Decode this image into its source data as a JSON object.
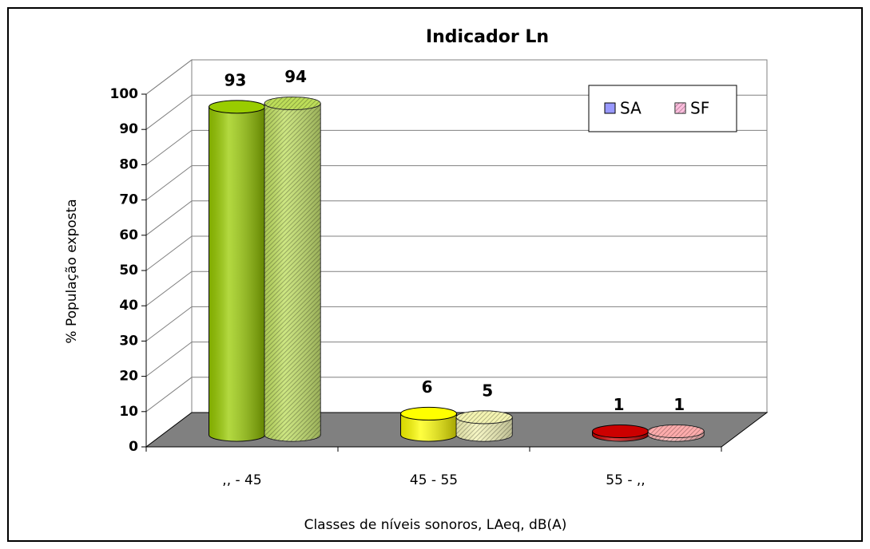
{
  "chart_data": {
    "type": "bar3d",
    "title": "Indicador Ln",
    "ylabel": "% População exposta",
    "xlabel": "Classes de níveis sonoros, LAeq, dB(A)",
    "categories": [
      ",, - 45",
      "45 - 55",
      "55 - ,,"
    ],
    "series": [
      {
        "name": "SA",
        "color": "#9999ff",
        "hatch": false,
        "values": [
          93,
          6,
          1
        ],
        "colors": [
          "#99cc00",
          "#ffff00",
          "#cc0000"
        ]
      },
      {
        "name": "SF",
        "color": "#ff99cc",
        "hatch": true,
        "values": [
          94,
          5,
          1
        ],
        "colors": [
          "#99cc00",
          "#eeee88",
          "#ff8080"
        ]
      }
    ],
    "ylim": [
      0,
      100
    ],
    "yticks": [
      0,
      10,
      20,
      30,
      40,
      50,
      60,
      70,
      80,
      90,
      100
    ],
    "grid": true,
    "legend": "top-right"
  }
}
